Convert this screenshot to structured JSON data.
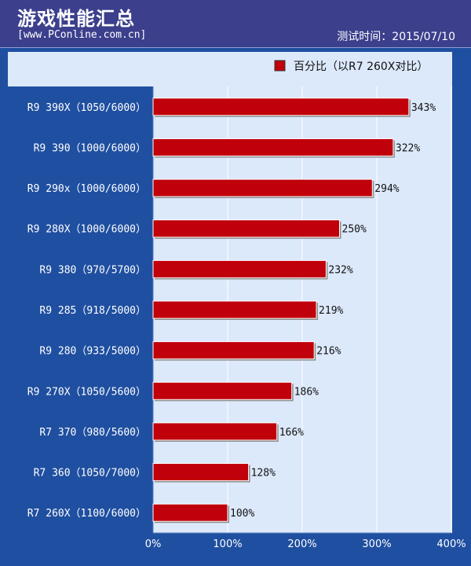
{
  "header": {
    "title": "游戏性能汇总",
    "source": "[www.PConline.com.cn]",
    "date": "测试时间：2015/07/10"
  },
  "colors": {
    "background": "#1f4fa0",
    "header": "#3b3f8c",
    "plot": "#dce9fb",
    "bar": "#c0000a",
    "grid": "#ffffff"
  },
  "chart_data": {
    "type": "bar",
    "orientation": "horizontal",
    "categories": [
      "R9 390X（1050/6000）",
      "R9 390（1000/6000）",
      "R9 290x（1000/6000）",
      "R9 280X（1000/6000）",
      "R9 380（970/5700）",
      "R9 285（918/5000）",
      "R9 280（933/5000）",
      "R9 270X（1050/5600）",
      "R7 370（980/5600）",
      "R7 360（1050/7000）",
      "R7 260X（1100/6000）"
    ],
    "series": [
      {
        "name": "百分比（以R7 260X对比）",
        "values": [
          343,
          322,
          294,
          250,
          232,
          219,
          216,
          186,
          166,
          128,
          100
        ],
        "labels": [
          "343%",
          "322%",
          "294%",
          "250%",
          "232%",
          "219%",
          "216%",
          "186%",
          "166%",
          "128%",
          "100%"
        ]
      }
    ],
    "xlim": [
      0,
      400
    ],
    "xticks": [
      0,
      100,
      200,
      300,
      400
    ],
    "xtick_labels": [
      "0%",
      "100%",
      "200%",
      "300%",
      "400%"
    ],
    "grid": true,
    "legend_position": "top-right"
  }
}
